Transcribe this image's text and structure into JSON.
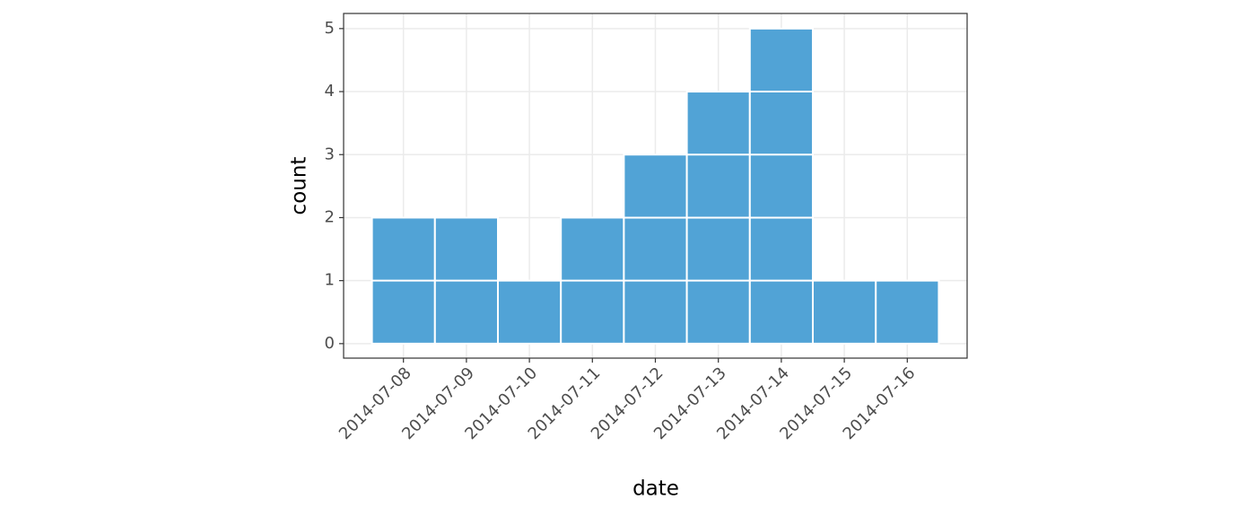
{
  "chart_data": {
    "type": "bar",
    "x_label": "date",
    "y_label": "count",
    "categories": [
      "2014-07-08",
      "2014-07-09",
      "2014-07-10",
      "2014-07-11",
      "2014-07-12",
      "2014-07-13",
      "2014-07-14",
      "2014-07-15",
      "2014-07-16"
    ],
    "values": [
      2,
      2,
      1,
      2,
      3,
      4,
      5,
      1,
      1
    ],
    "color": "#4ba0d5",
    "ylim": [
      -0.23,
      5.24
    ],
    "yticks": [
      0,
      1,
      2,
      3,
      4,
      5
    ],
    "grid": true
  }
}
